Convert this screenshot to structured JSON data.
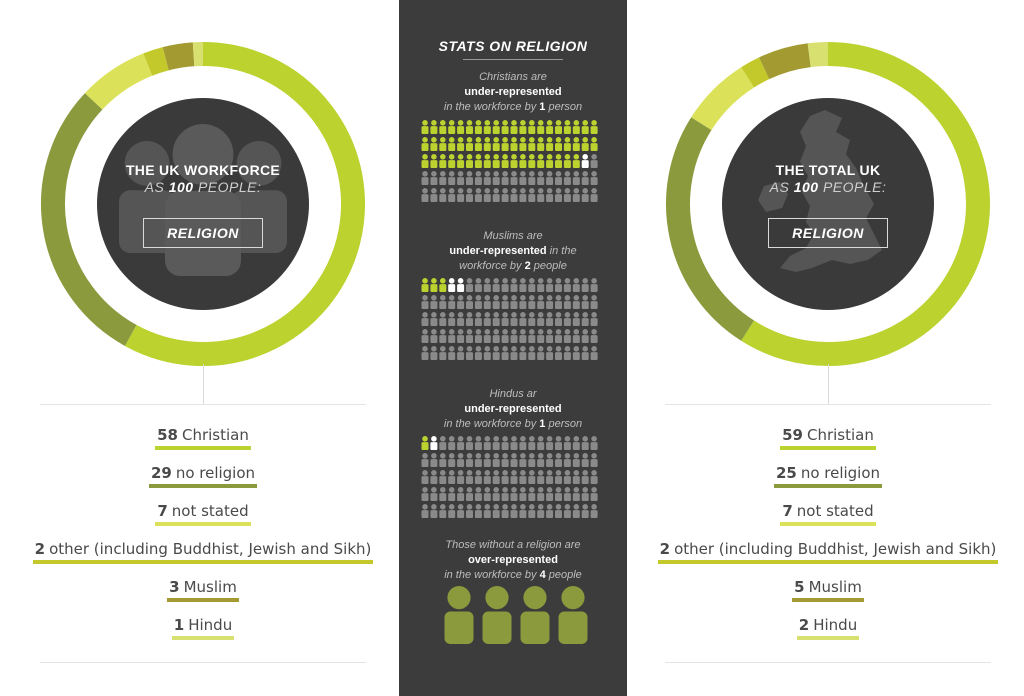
{
  "colors": {
    "bg": "#ffffff",
    "panel": "#3c3c3c",
    "inner_circle": "#3a3a3a",
    "person_grey": "#8a8a8a",
    "person_white": "#ffffff",
    "segments": [
      "#bcd22f",
      "#8a9a3c",
      "#dbe25a",
      "#c3c92a",
      "#a39b32",
      "#d8e070"
    ]
  },
  "left": {
    "title_line1": "THE UK WORKFORCE",
    "title_line2_pre": "AS",
    "title_line2_num": "100",
    "title_line2_post": "PEOPLE:",
    "box_label": "RELIGION",
    "legend": [
      {
        "num": "58",
        "label": "Christian"
      },
      {
        "num": "29",
        "label": "no religion"
      },
      {
        "num": "7",
        "label": "not stated"
      },
      {
        "num": "2",
        "label": "other (including Buddhist, Jewish and Sikh)"
      },
      {
        "num": "3",
        "label": "Muslim"
      },
      {
        "num": "1",
        "label": "Hindu"
      }
    ]
  },
  "right": {
    "title_line1": "THE TOTAL UK",
    "title_line2_pre": "AS",
    "title_line2_num": "100",
    "title_line2_post": "PEOPLE:",
    "box_label": "RELIGION",
    "legend": [
      {
        "num": "59",
        "label": "Christian"
      },
      {
        "num": "25",
        "label": "no religion"
      },
      {
        "num": "7",
        "label": "not stated"
      },
      {
        "num": "2",
        "label": "other (including Buddhist, Jewish and Sikh)"
      },
      {
        "num": "5",
        "label": "Muslim"
      },
      {
        "num": "2",
        "label": "Hindu"
      }
    ]
  },
  "middle": {
    "title": "STATS ON RELIGION",
    "stats": [
      {
        "l1": "Christians are",
        "l2b": "under-represented",
        "l2": "",
        "l3": "in the workforce by",
        "l3b": "1",
        "l3e": "person"
      },
      {
        "l1": "Muslims are",
        "l2b": "under-represented",
        "l2": "in the",
        "l3": "workforce by",
        "l3b": "2",
        "l3e": "people"
      },
      {
        "l1": "Hindus ar",
        "l2b": "under-represented",
        "l2": "",
        "l3": "in the workforce by",
        "l3b": "1",
        "l3e": "person"
      },
      {
        "l1": "Those without a religion are",
        "l2b": "over-represented",
        "l2": "",
        "l3": "in the workforce by",
        "l3b": "4",
        "l3e": "people"
      }
    ]
  },
  "chart_data": [
    {
      "type": "pie",
      "title": "THE UK WORKFORCE AS 100 PEOPLE: RELIGION",
      "categories": [
        "Christian",
        "no religion",
        "not stated",
        "other (including Buddhist, Jewish and Sikh)",
        "Muslim",
        "Hindu"
      ],
      "values": [
        58,
        29,
        7,
        2,
        3,
        1
      ]
    },
    {
      "type": "pie",
      "title": "THE TOTAL UK AS 100 PEOPLE: RELIGION",
      "categories": [
        "Christian",
        "no religion",
        "not stated",
        "other (including Buddhist, Jewish and Sikh)",
        "Muslim",
        "Hindu"
      ],
      "values": [
        59,
        25,
        7,
        2,
        5,
        2
      ]
    }
  ],
  "people_grids": [
    {
      "total": 100,
      "green": 58,
      "white": 1
    },
    {
      "total": 100,
      "green": 3,
      "white": 2
    },
    {
      "total": 100,
      "green": 1,
      "white": 1
    },
    {
      "total": 4,
      "green": 4,
      "white": 0
    }
  ]
}
